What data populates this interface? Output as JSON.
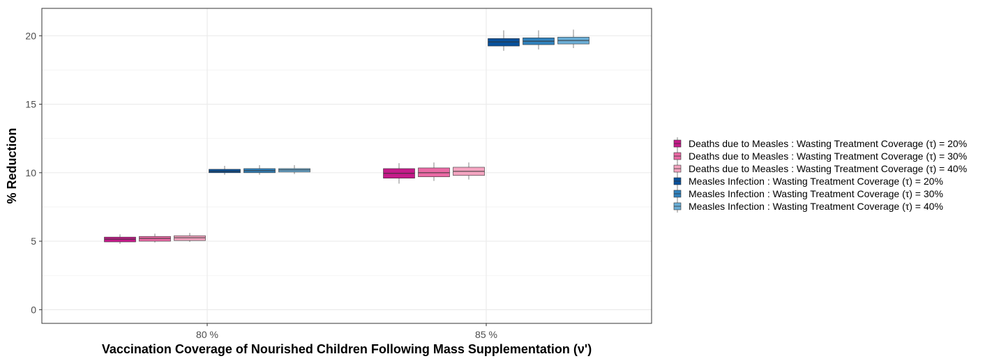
{
  "chart_data": {
    "type": "box",
    "title": "",
    "xlabel": "Vaccination Coverage of Nourished Children Following Mass Supplementation (ν')",
    "ylabel": "% Reduction",
    "categories": [
      "80 %",
      "85 %"
    ],
    "ylim": [
      -1,
      22
    ],
    "yticks": [
      0,
      5,
      10,
      15,
      20
    ],
    "grid": true,
    "legend_position": "right",
    "series": [
      {
        "name": "Deaths due to Measles : Wasting Treatment Coverage (τ) = 20%",
        "color": "#c51b8a",
        "boxes": [
          {
            "category": "80 %",
            "min": 4.8,
            "q1": 4.95,
            "median": 5.15,
            "q3": 5.3,
            "max": 5.5
          },
          {
            "category": "85 %",
            "min": 9.2,
            "q1": 9.6,
            "median": 9.95,
            "q3": 10.3,
            "max": 10.7
          }
        ]
      },
      {
        "name": "Deaths due to Measles : Wasting Treatment Coverage (τ) = 30%",
        "color": "#ea6aa5",
        "boxes": [
          {
            "category": "80 %",
            "min": 4.9,
            "q1": 5.0,
            "median": 5.2,
            "q3": 5.35,
            "max": 5.55
          },
          {
            "category": "85 %",
            "min": 9.4,
            "q1": 9.7,
            "median": 10.0,
            "q3": 10.35,
            "max": 10.75
          }
        ]
      },
      {
        "name": "Deaths due to Measles : Wasting Treatment Coverage (τ) = 40%",
        "color": "#f4a5c1",
        "boxes": [
          {
            "category": "80 %",
            "min": 4.95,
            "q1": 5.05,
            "median": 5.25,
            "q3": 5.4,
            "max": 5.6
          },
          {
            "category": "85 %",
            "min": 9.5,
            "q1": 9.8,
            "median": 10.1,
            "q3": 10.4,
            "max": 10.75
          }
        ]
      },
      {
        "name": "Measles Infection : Wasting Treatment Coverage (τ) = 20%",
        "color": "#08519c",
        "boxes": [
          {
            "category": "80 %",
            "min": 9.85,
            "q1": 10.0,
            "median": 10.1,
            "q3": 10.25,
            "max": 10.5
          },
          {
            "category": "85 %",
            "min": 18.9,
            "q1": 19.25,
            "median": 19.55,
            "q3": 19.8,
            "max": 20.4
          }
        ]
      },
      {
        "name": "Measles Infection : Wasting Treatment Coverage (τ) = 30%",
        "color": "#3182bd",
        "boxes": [
          {
            "category": "80 %",
            "min": 9.85,
            "q1": 10.0,
            "median": 10.15,
            "q3": 10.3,
            "max": 10.55
          },
          {
            "category": "85 %",
            "min": 19.0,
            "q1": 19.35,
            "median": 19.6,
            "q3": 19.85,
            "max": 20.4
          }
        ]
      },
      {
        "name": "Measles Infection : Wasting Treatment Coverage (τ) = 40%",
        "color": "#6baed6",
        "boxes": [
          {
            "category": "80 %",
            "min": 9.9,
            "q1": 10.05,
            "median": 10.2,
            "q3": 10.3,
            "max": 10.55
          },
          {
            "category": "85 %",
            "min": 19.1,
            "q1": 19.4,
            "median": 19.65,
            "q3": 19.9,
            "max": 20.45
          }
        ]
      }
    ]
  }
}
